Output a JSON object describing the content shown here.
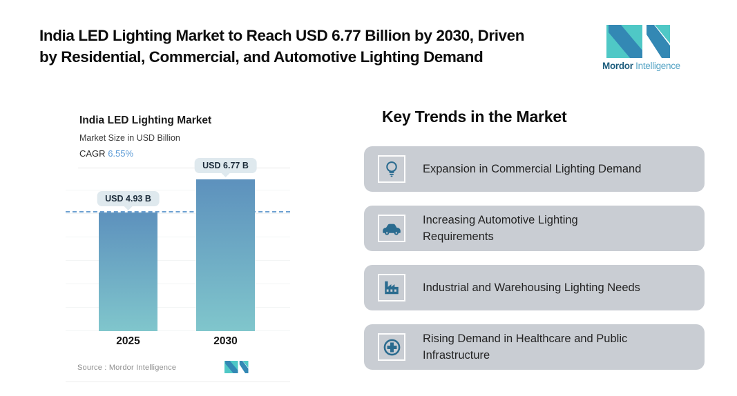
{
  "header": {
    "title_line1": "India LED Lighting Market to Reach USD 6.77 Billion by 2030, Driven",
    "title_line2": "by Residential, Commercial, and Automotive Lighting Demand"
  },
  "brand": {
    "name_bold": "Mordor",
    "name_light": "Intelligence"
  },
  "chart": {
    "title": "India LED Lighting Market",
    "subtitle": "Market Size in USD Billion",
    "cagr_label": "CAGR",
    "cagr_value": "6.55%",
    "source": "Source : Mordor Intelligence"
  },
  "chart_data": {
    "type": "bar",
    "categories": [
      "2025",
      "2030"
    ],
    "values": [
      4.93,
      6.77
    ],
    "value_labels": [
      "USD 4.93 B",
      "USD 6.77 B"
    ],
    "title": "India LED Lighting Market",
    "subtitle": "Market Size in USD Billion",
    "cagr": "6.55%",
    "xlabel": "",
    "ylabel": "Market Size in USD Billion",
    "grid": "faint horizontal gridlines",
    "annotations": [
      "horizontal dashed reference line at the 2025 bar top"
    ],
    "source": "Source : Mordor Intelligence"
  },
  "trends": {
    "heading": "Key Trends in the Market",
    "items": [
      {
        "icon": "lightbulb-icon",
        "label": "Expansion in Commercial Lighting Demand"
      },
      {
        "icon": "car-icon",
        "label": "Increasing Automotive Lighting\nRequirements"
      },
      {
        "icon": "factory-icon",
        "label": "Industrial and Warehousing Lighting Needs"
      },
      {
        "icon": "medical-cross-icon",
        "label": "Rising Demand in Healthcare and Public\nInfrastructure"
      }
    ]
  },
  "colors": {
    "card_bg": "#c9cdd3",
    "icon_blue": "#2a6b8f",
    "bar_top": "#5d91bd",
    "bar_bottom": "#80c6cc",
    "dash": "#6b9fd0",
    "cagr_blue": "#5c9bd6",
    "tooltip_bg": "#dfe9ee",
    "teal": "#4fc8c6",
    "blue": "#3388b4"
  }
}
